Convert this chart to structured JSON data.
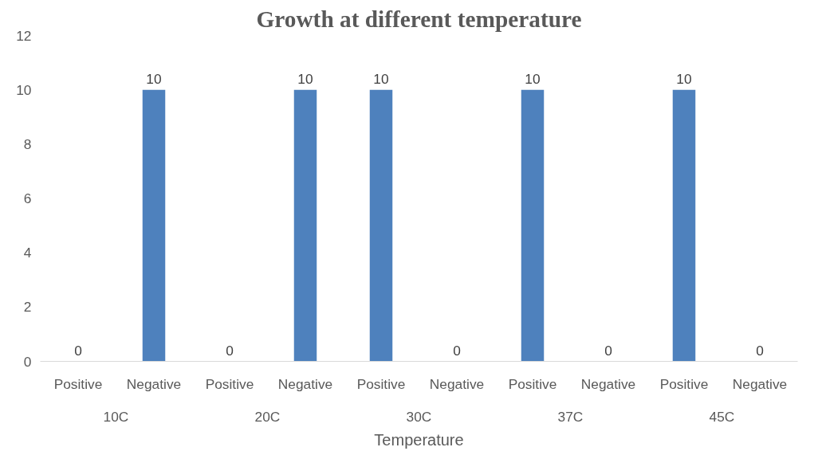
{
  "chart_data": {
    "type": "bar",
    "title": "Growth at different temperature",
    "xlabel": "Temperature",
    "categories": [
      "Positive",
      "Negative",
      "Positive",
      "Negative",
      "Positive",
      "Negative",
      "Positive",
      "Negative",
      "Positive",
      "Negative"
    ],
    "annotations": [
      "10C",
      "20C",
      "30C",
      "37C",
      "45C"
    ],
    "values": [
      0,
      10,
      0,
      10,
      10,
      0,
      10,
      0,
      10,
      0
    ],
    "color": "#4e81bd",
    "ylim": [
      0,
      12
    ],
    "yticks": [
      0,
      2,
      4,
      6,
      8,
      10,
      12
    ],
    "grid": false,
    "data_labels": true
  }
}
